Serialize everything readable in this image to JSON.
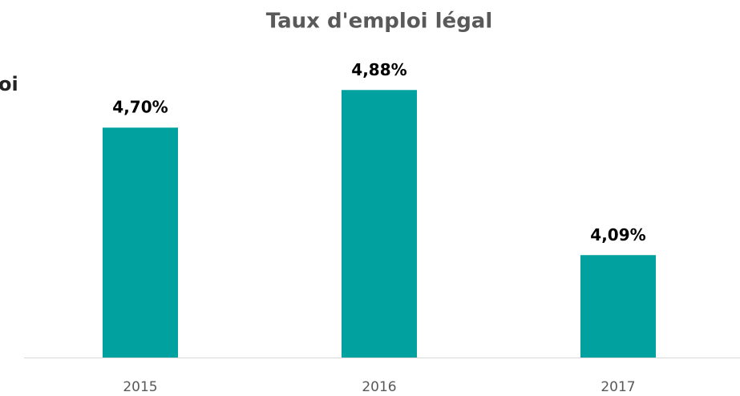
{
  "chart_data": {
    "type": "bar",
    "title": "Taux d'emploi légal",
    "annotation": "oi",
    "categories": [
      "2015",
      "2016",
      "2017"
    ],
    "values": [
      4.7,
      4.88,
      4.09
    ],
    "value_labels": [
      "4,70%",
      "4,88%",
      "4,09%"
    ],
    "color": "#00a19e",
    "ylim": [
      3.6,
      5.0
    ]
  }
}
